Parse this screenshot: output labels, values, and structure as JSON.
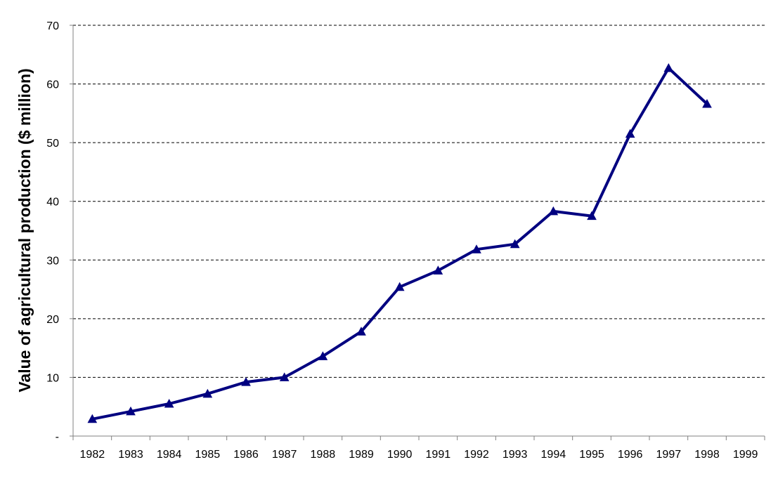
{
  "chart_data": {
    "type": "line",
    "title": "",
    "xlabel": "",
    "ylabel": "Value of agricultural production ($ million)",
    "ylim": [
      0,
      70
    ],
    "yticks": [
      {
        "value": 0,
        "label": "-"
      },
      {
        "value": 10,
        "label": "10"
      },
      {
        "value": 20,
        "label": "20"
      },
      {
        "value": 30,
        "label": "30"
      },
      {
        "value": 40,
        "label": "40"
      },
      {
        "value": 50,
        "label": "50"
      },
      {
        "value": 60,
        "label": "60"
      },
      {
        "value": 70,
        "label": "70"
      }
    ],
    "categories": [
      "1982",
      "1983",
      "1984",
      "1985",
      "1986",
      "1987",
      "1988",
      "1989",
      "1990",
      "1991",
      "1992",
      "1993",
      "1994",
      "1995",
      "1996",
      "1997",
      "1998",
      "1999"
    ],
    "series": [
      {
        "values": [
          2.9,
          4.2,
          5.5,
          7.2,
          9.2,
          10.0,
          13.6,
          17.8,
          25.4,
          28.2,
          31.8,
          32.7,
          38.3,
          37.5,
          51.5,
          62.7,
          56.6,
          null
        ]
      }
    ],
    "grid": "horizontal dashed",
    "legend": "none",
    "colors": {
      "line": "#000080",
      "grid": "#000000",
      "axis": "#808080",
      "text": "#000000"
    }
  }
}
